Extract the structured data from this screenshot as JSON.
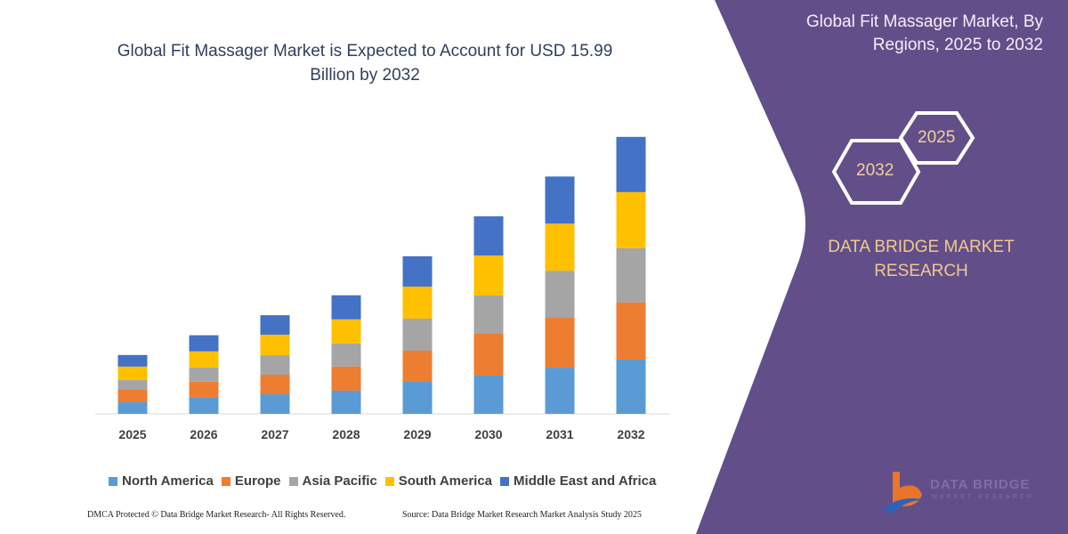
{
  "colors": {
    "panel": "#624f89",
    "hex_stroke": "#ffffff",
    "brand_text": "#f2c98e"
  },
  "right_panel": {
    "title": "Global Fit Massager Market, By Regions, 2025 to 2032",
    "hex_years": [
      "2025",
      "2032"
    ],
    "brand": "DATA BRIDGE MARKET RESEARCH",
    "logo": {
      "text": "DATA BRIDGE",
      "sub": "MARKET RESEARCH"
    }
  },
  "footer": {
    "left": "DMCA Protected © Data Bridge Market Research-  All Rights Reserved.",
    "right": "Source: Data Bridge Market Research  Market Analysis Study 2025"
  },
  "chart_data": {
    "type": "bar",
    "stacked": true,
    "title": "Global Fit Massager Market is Expected to Account for USD 15.99 Billion by 2032",
    "xlabel": "",
    "ylabel": "",
    "categories": [
      "2025",
      "2026",
      "2027",
      "2028",
      "2029",
      "2030",
      "2031",
      "2032"
    ],
    "ylim": [
      0,
      16
    ],
    "grid": false,
    "legend": "bottom",
    "series": [
      {
        "name": "North America",
        "color": "#5b9bd5",
        "values": [
          0.67,
          0.93,
          1.13,
          1.34,
          1.85,
          2.21,
          2.67,
          3.14
        ]
      },
      {
        "name": "Europe",
        "color": "#ed7d31",
        "values": [
          0.72,
          0.93,
          1.13,
          1.39,
          1.8,
          2.42,
          2.88,
          3.29
        ]
      },
      {
        "name": "Asia Pacific",
        "color": "#a5a5a5",
        "values": [
          0.57,
          0.82,
          1.13,
          1.34,
          1.85,
          2.21,
          2.72,
          3.14
        ]
      },
      {
        "name": "South America",
        "color": "#ffc000",
        "values": [
          0.77,
          0.93,
          1.18,
          1.39,
          1.85,
          2.31,
          2.72,
          3.24
        ]
      },
      {
        "name": "Middle East and Africa",
        "color": "#4472c4",
        "values": [
          0.67,
          0.93,
          1.13,
          1.39,
          1.75,
          2.26,
          2.72,
          3.19
        ]
      }
    ]
  }
}
